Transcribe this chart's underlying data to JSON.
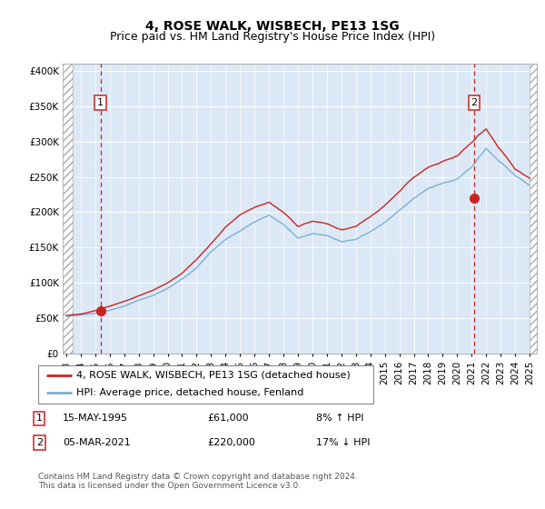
{
  "title": "4, ROSE WALK, WISBECH, PE13 1SG",
  "subtitle": "Price paid vs. HM Land Registry's House Price Index (HPI)",
  "ylim": [
    0,
    410000
  ],
  "yticks": [
    0,
    50000,
    100000,
    150000,
    200000,
    250000,
    300000,
    350000,
    400000
  ],
  "ytick_labels": [
    "£0",
    "£50K",
    "£100K",
    "£150K",
    "£200K",
    "£250K",
    "£300K",
    "£350K",
    "£400K"
  ],
  "xlim_start": 1992.75,
  "xlim_end": 2025.5,
  "hatch_left_end": 1993.42,
  "hatch_right_start": 2025.0,
  "sale1_x": 1995.37,
  "sale1_y": 61000,
  "sale1_label": "1",
  "sale1_date": "15-MAY-1995",
  "sale1_price": "£61,000",
  "sale1_hpi": "8% ↑ HPI",
  "sale2_x": 2021.17,
  "sale2_y": 220000,
  "sale2_label": "2",
  "sale2_date": "05-MAR-2021",
  "sale2_price": "£220,000",
  "sale2_hpi": "17% ↓ HPI",
  "line1_color": "#cc2222",
  "line2_color": "#7ab0d4",
  "plot_bg": "#dce8f5",
  "grid_color": "#ffffff",
  "legend1_label": "4, ROSE WALK, WISBECH, PE13 1SG (detached house)",
  "legend2_label": "HPI: Average price, detached house, Fenland",
  "footer": "Contains HM Land Registry data © Crown copyright and database right 2024.\nThis data is licensed under the Open Government Licence v3.0.",
  "title_fontsize": 10,
  "subtitle_fontsize": 9,
  "tick_fontsize": 7.5,
  "anno_fontsize": 8,
  "legend_fontsize": 8,
  "table_fontsize": 8,
  "footer_fontsize": 6.5
}
